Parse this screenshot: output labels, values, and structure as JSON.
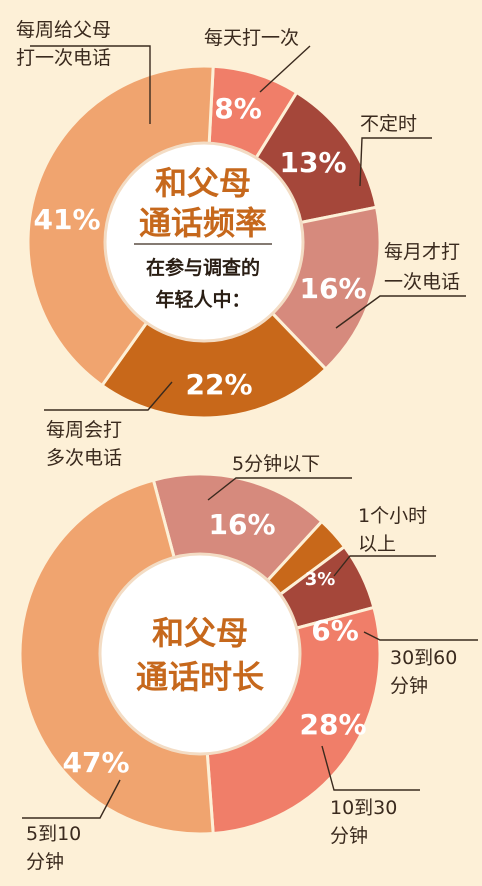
{
  "colors": {
    "background": "#fdf0d7",
    "title": "#c6681c",
    "leader_line": "#3a2a1e"
  },
  "chart_data": [
    {
      "type": "pie",
      "title": "和父母通话频率",
      "subtitle": "在参与调查的年轻人中：",
      "series": [
        {
          "name": "每天打一次",
          "value": 8,
          "label": "8%",
          "color": "#f07e69"
        },
        {
          "name": "不定时",
          "value": 13,
          "label": "13%",
          "color": "#a5473a"
        },
        {
          "name": "每月才打一次电话",
          "value": 16,
          "label": "16%",
          "color": "#d68a7d"
        },
        {
          "name": "每周会打多次电话",
          "value": 22,
          "label": "22%",
          "color": "#c8681a"
        },
        {
          "name": "每周给父母打一次电话",
          "value": 41,
          "label": "41%",
          "color": "#f0a46f"
        }
      ]
    },
    {
      "type": "pie",
      "title": "和父母通话时长",
      "series": [
        {
          "name": "5分钟以下",
          "value": 16,
          "label": "16%",
          "color": "#d68a7d"
        },
        {
          "name": "1个小时以上",
          "value": 3,
          "label": "3%",
          "color": "#c8681a"
        },
        {
          "name": "30到60分钟",
          "value": 6,
          "label": "6%",
          "color": "#a5473a"
        },
        {
          "name": "10到30分钟",
          "value": 28,
          "label": "28%",
          "color": "#f07e69"
        },
        {
          "name": "5到10分钟",
          "value": 47,
          "label": "47%",
          "color": "#f0a46f"
        }
      ]
    }
  ]
}
